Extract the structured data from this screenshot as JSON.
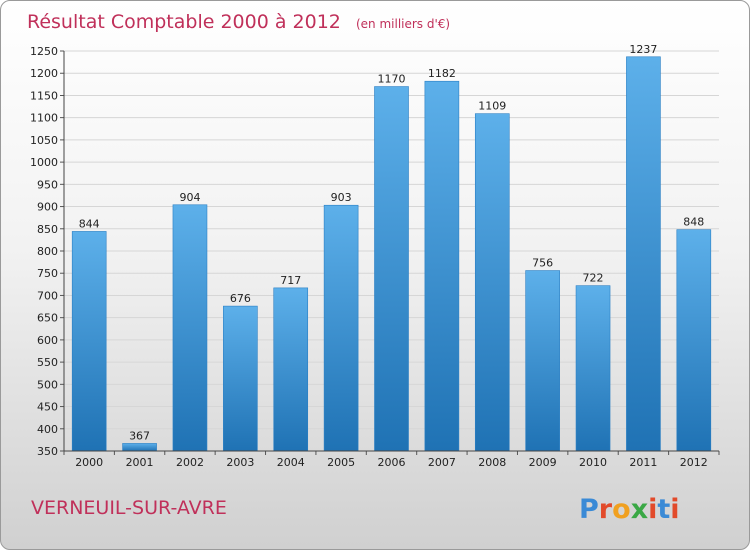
{
  "chart_data": {
    "type": "bar",
    "title": "Résultat Comptable 2000 à 2012",
    "subtitle": "(en milliers d'€)",
    "categories": [
      "2000",
      "2001",
      "2002",
      "2003",
      "2004",
      "2005",
      "2006",
      "2007",
      "2008",
      "2009",
      "2010",
      "2011",
      "2012"
    ],
    "values": [
      844,
      367,
      904,
      676,
      717,
      903,
      1170,
      1182,
      1109,
      756,
      722,
      1237,
      848
    ],
    "ylim": [
      350,
      1250
    ],
    "yticks": [
      350,
      400,
      450,
      500,
      550,
      600,
      650,
      700,
      750,
      800,
      850,
      900,
      950,
      1000,
      1050,
      1100,
      1150,
      1200,
      1250
    ],
    "grid": true,
    "legend": "none",
    "bar_color": "#4a9fdf"
  },
  "footer": {
    "city": "VERNEUIL-SUR-AVRE",
    "logo_letters": [
      "P",
      "r",
      "o",
      "x",
      "i",
      "t",
      "i"
    ],
    "logo_colors": [
      "#3a8ad6",
      "#e24a2a",
      "#f0a020",
      "#3aa845",
      "#e24a2a",
      "#3a8ad6",
      "#e24a2a"
    ]
  },
  "colors": {
    "title": "#c0305a",
    "bar_dark": "#1f72b4",
    "bar_light": "#5db0ea"
  }
}
